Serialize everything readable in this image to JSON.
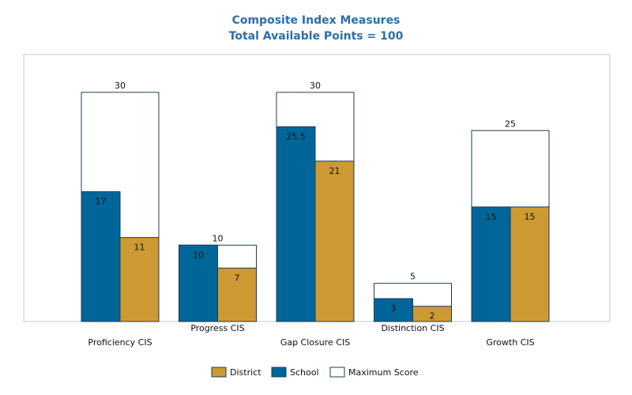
{
  "chart_data": {
    "type": "bar",
    "title": "Composite Index Measures",
    "subtitle": "Total Available Points = 100",
    "xlabel": "",
    "ylabel": "",
    "ylim": [
      0,
      35
    ],
    "grid": false,
    "legend_position": "bottom",
    "categories": [
      "Proficiency CIS",
      "Progress CIS",
      "Gap Closure CIS",
      "Distinction CIS",
      "Growth CIS"
    ],
    "series": [
      {
        "name": "School",
        "values": [
          17,
          10,
          25.5,
          3,
          15
        ],
        "color": "#006699"
      },
      {
        "name": "District",
        "values": [
          11,
          7,
          21,
          2,
          15
        ],
        "color": "#cc9933"
      },
      {
        "name": "Maximum Score",
        "values": [
          30,
          10,
          30,
          5,
          25
        ],
        "color": "#ffffff"
      }
    ],
    "legend": [
      "District",
      "School",
      "Maximum Score"
    ]
  }
}
